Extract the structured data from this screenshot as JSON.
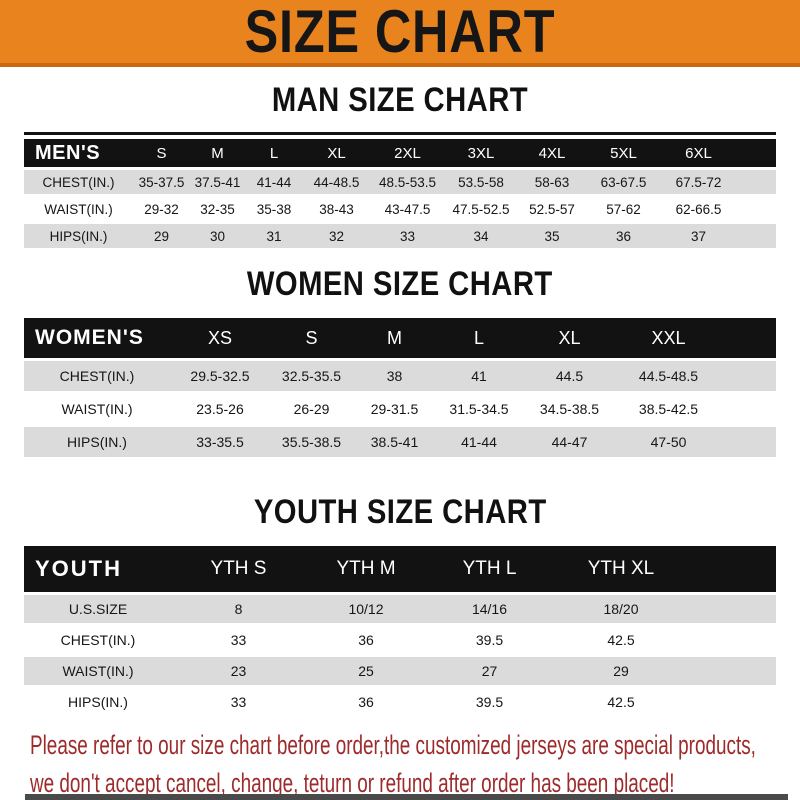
{
  "banner": {
    "title": "SIZE CHART",
    "bg_color": "#E8831E",
    "edge_color": "#C8690F",
    "text_color": "#161616"
  },
  "colors": {
    "header_bar": "#121212",
    "stripe": "#DBDBDB",
    "footnote_red": "#9E2B2B",
    "bottom_bar": "#4A4A4A"
  },
  "sections": [
    {
      "title": "MAN SIZE CHART",
      "header_label": "MEN'S",
      "columns": [
        "S",
        "M",
        "L",
        "XL",
        "2XL",
        "3XL",
        "4XL",
        "5XL",
        "6XL"
      ],
      "rows": [
        {
          "label": "CHEST(IN.)",
          "values": [
            "35-37.5",
            "37.5-41",
            "41-44",
            "44-48.5",
            "48.5-53.5",
            "53.5-58",
            "58-63",
            "63-67.5",
            "67.5-72"
          ]
        },
        {
          "label": "WAIST(IN.)",
          "values": [
            "29-32",
            "32-35",
            "35-38",
            "38-43",
            "43-47.5",
            "47.5-52.5",
            "52.5-57",
            "57-62",
            "62-66.5"
          ]
        },
        {
          "label": "HIPS(IN.)",
          "values": [
            "29",
            "30",
            "31",
            "32",
            "33",
            "34",
            "35",
            "36",
            "37"
          ]
        }
      ]
    },
    {
      "title": "WOMEN SIZE CHART",
      "header_label": "WOMEN'S",
      "columns": [
        "XS",
        "S",
        "M",
        "L",
        "XL",
        "XXL"
      ],
      "rows": [
        {
          "label": "CHEST(IN.)",
          "values": [
            "29.5-32.5",
            "32.5-35.5",
            "38",
            "41",
            "44.5",
            "44.5-48.5"
          ]
        },
        {
          "label": "WAIST(IN.)",
          "values": [
            "23.5-26",
            "26-29",
            "29-31.5",
            "31.5-34.5",
            "34.5-38.5",
            "38.5-42.5"
          ]
        },
        {
          "label": "HIPS(IN.)",
          "values": [
            "33-35.5",
            "35.5-38.5",
            "38.5-41",
            "41-44",
            "44-47",
            "47-50"
          ]
        }
      ]
    },
    {
      "title": "YOUTH SIZE CHART",
      "header_label": "YOUTH",
      "columns": [
        "YTH S",
        "YTH M",
        "YTH L",
        "YTH XL"
      ],
      "rows": [
        {
          "label": "U.S.SIZE",
          "values": [
            "8",
            "10/12",
            "14/16",
            "18/20"
          ]
        },
        {
          "label": "CHEST(IN.)",
          "values": [
            "33",
            "36",
            "39.5",
            "42.5"
          ]
        },
        {
          "label": "WAIST(IN.)",
          "values": [
            "23",
            "25",
            "27",
            "29"
          ]
        },
        {
          "label": "HIPS(IN.)",
          "values": [
            "33",
            "36",
            "39.5",
            "42.5"
          ]
        }
      ]
    }
  ],
  "footnote": {
    "line1": "Please refer to our size chart before order,the customized jerseys are special products,",
    "line2": "we don't accept cancel, change, teturn or refund after order has been placed!"
  }
}
